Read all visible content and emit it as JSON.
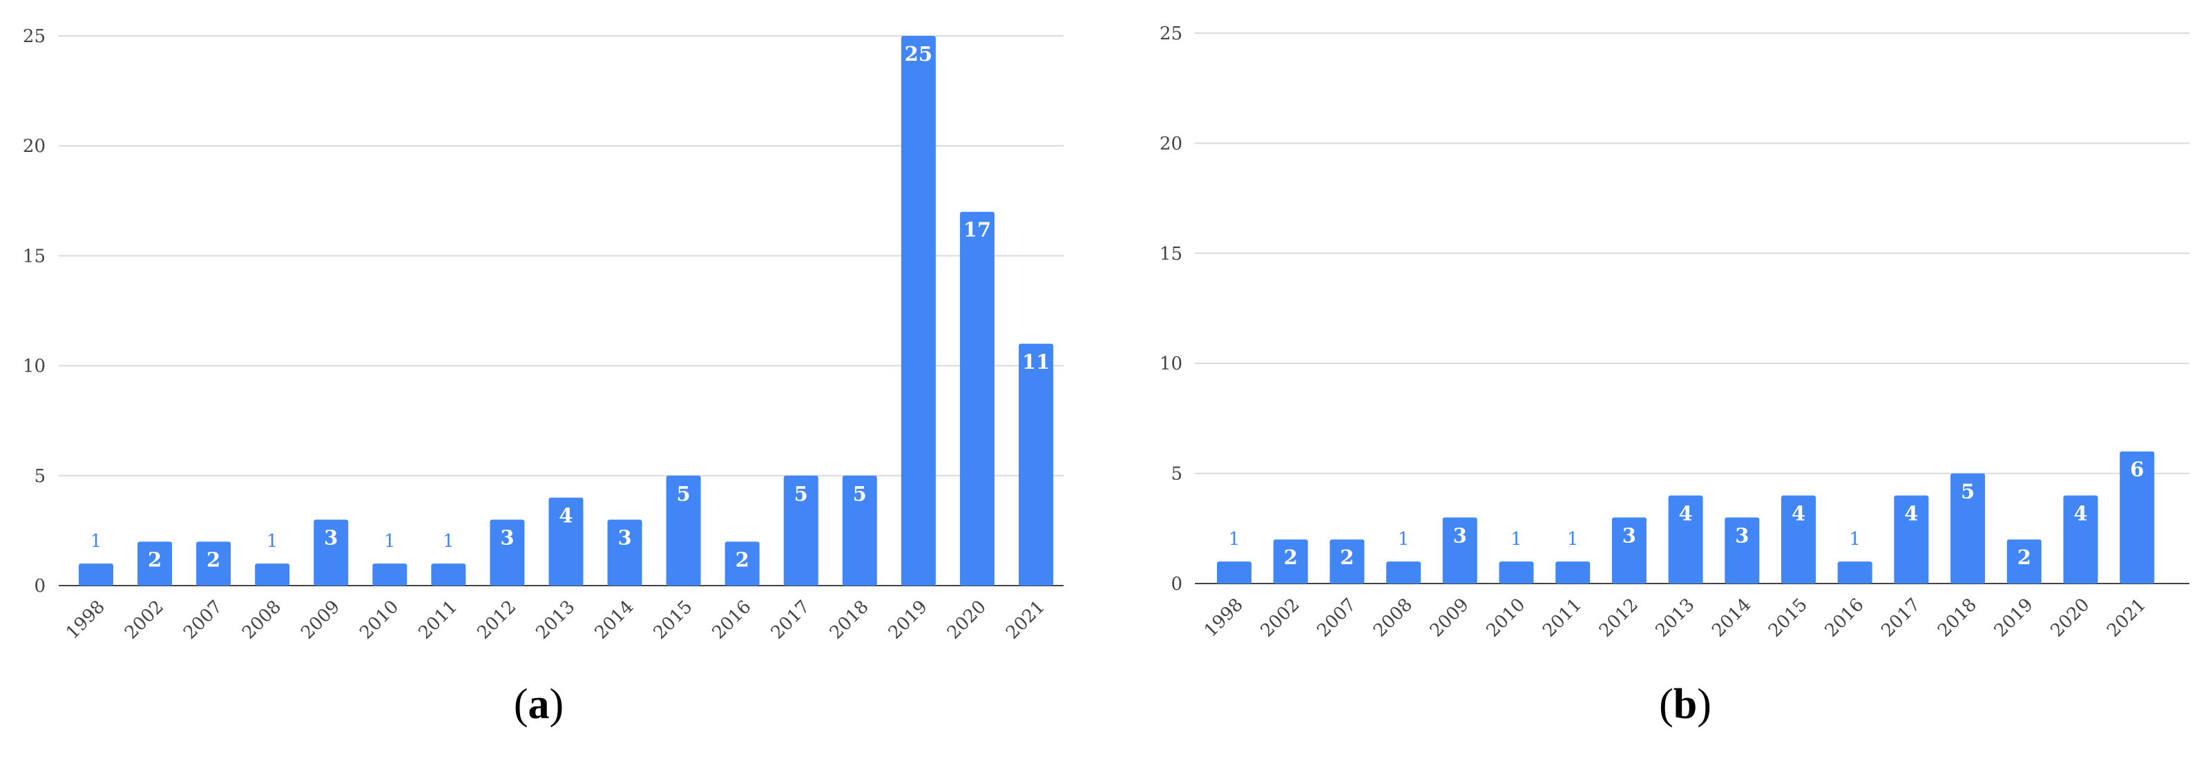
{
  "chart_data": [
    {
      "type": "bar",
      "caption": "a",
      "categories": [
        "1998",
        "2002",
        "2007",
        "2008",
        "2009",
        "2010",
        "2011",
        "2012",
        "2013",
        "2014",
        "2015",
        "2016",
        "2017",
        "2018",
        "2019",
        "2020",
        "2021"
      ],
      "values": [
        1,
        2,
        2,
        1,
        3,
        1,
        1,
        3,
        4,
        3,
        5,
        2,
        5,
        5,
        25,
        17,
        11
      ],
      "ylim": [
        0,
        25
      ],
      "yticks": [
        0,
        5,
        10,
        15,
        20,
        25
      ],
      "grid": true,
      "bar_color": "#4285f4"
    },
    {
      "type": "bar",
      "caption": "b",
      "categories": [
        "1998",
        "2002",
        "2007",
        "2008",
        "2009",
        "2010",
        "2011",
        "2012",
        "2013",
        "2014",
        "2015",
        "2016",
        "2017",
        "2018",
        "2019",
        "2020",
        "2021"
      ],
      "values": [
        1,
        2,
        2,
        1,
        3,
        1,
        1,
        3,
        4,
        3,
        4,
        1,
        4,
        5,
        2,
        4,
        6
      ],
      "ylim": [
        0,
        25
      ],
      "yticks": [
        0,
        5,
        10,
        15,
        20,
        25
      ],
      "grid": true,
      "bar_color": "#4285f4"
    }
  ]
}
